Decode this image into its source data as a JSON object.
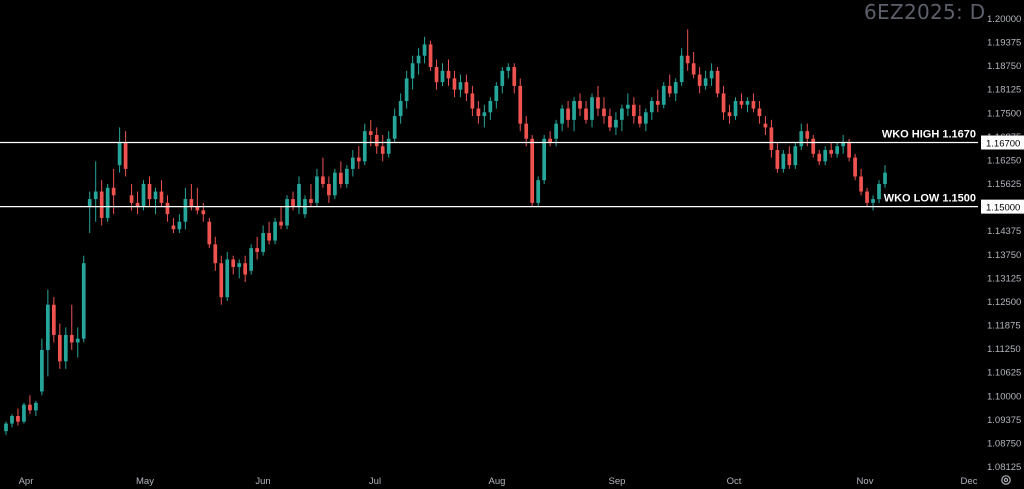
{
  "symbol": "6EZ2025: D",
  "colors": {
    "background": "#000000",
    "up": "#26a69a",
    "down": "#ef5350",
    "text": "#d1d4dc",
    "level_line": "#ffffff",
    "axis_text": "#b2b5be",
    "title": "#5d606b"
  },
  "chart_data": {
    "type": "candlestick",
    "title": "6EZ2025: D",
    "ylim": [
      1.07875,
      1.20125
    ],
    "x_tick_labels": [
      "Apr",
      "May",
      "Jun",
      "Jul",
      "Aug",
      "Sep",
      "Oct",
      "Nov",
      "Dec"
    ],
    "y_tick_labels": [
      "1.20000",
      "1.19375",
      "1.18750",
      "1.18125",
      "1.17500",
      "1.16875",
      "1.16250",
      "1.15625",
      "1.15000",
      "1.14375",
      "1.13750",
      "1.13125",
      "1.12500",
      "1.11875",
      "1.11250",
      "1.10625",
      "1.10000",
      "1.09375",
      "1.08750",
      "1.08125"
    ],
    "levels": [
      {
        "label": "WKO HIGH 1.1670",
        "value": 1.167,
        "axis_label": "1.16700"
      },
      {
        "label": "WKO LOW 1.1500",
        "value": 1.15,
        "axis_label": "1.15000"
      }
    ],
    "candles": [
      [
        1.0905,
        1.093,
        1.0895,
        1.0925
      ],
      [
        1.0925,
        1.095,
        1.0915,
        1.0945
      ],
      [
        1.0945,
        1.0965,
        1.092,
        1.093
      ],
      [
        1.093,
        1.098,
        1.0925,
        1.0975
      ],
      [
        1.0975,
        1.1,
        1.095,
        1.096
      ],
      [
        1.096,
        1.0985,
        1.0945,
        1.098
      ],
      [
        1.101,
        1.115,
        1.1,
        1.112
      ],
      [
        1.112,
        1.128,
        1.105,
        1.124
      ],
      [
        1.124,
        1.126,
        1.114,
        1.116
      ],
      [
        1.116,
        1.119,
        1.107,
        1.109
      ],
      [
        1.109,
        1.118,
        1.107,
        1.116
      ],
      [
        1.116,
        1.124,
        1.112,
        1.114
      ],
      [
        1.114,
        1.118,
        1.11,
        1.115
      ],
      [
        1.115,
        1.137,
        1.114,
        1.135
      ],
      [
        1.15,
        1.154,
        1.143,
        1.152
      ],
      [
        1.152,
        1.162,
        1.146,
        1.154
      ],
      [
        1.154,
        1.157,
        1.145,
        1.147
      ],
      [
        1.147,
        1.156,
        1.146,
        1.155
      ],
      [
        1.155,
        1.16,
        1.148,
        1.153
      ],
      [
        1.161,
        1.171,
        1.159,
        1.167
      ],
      [
        1.167,
        1.17,
        1.158,
        1.16
      ],
      [
        1.153,
        1.156,
        1.149,
        1.151
      ],
      [
        1.151,
        1.154,
        1.148,
        1.15
      ],
      [
        1.15,
        1.157,
        1.149,
        1.156
      ],
      [
        1.156,
        1.158,
        1.15,
        1.152
      ],
      [
        1.152,
        1.155,
        1.148,
        1.154
      ],
      [
        1.154,
        1.157,
        1.15,
        1.151
      ],
      [
        1.151,
        1.153,
        1.146,
        1.148
      ],
      [
        1.145,
        1.147,
        1.143,
        1.144
      ],
      [
        1.144,
        1.148,
        1.143,
        1.146
      ],
      [
        1.146,
        1.155,
        1.144,
        1.152
      ],
      [
        1.152,
        1.156,
        1.149,
        1.15
      ],
      [
        1.15,
        1.155,
        1.148,
        1.149
      ],
      [
        1.149,
        1.151,
        1.146,
        1.148
      ],
      [
        1.146,
        1.147,
        1.139,
        1.14
      ],
      [
        1.14,
        1.142,
        1.133,
        1.135
      ],
      [
        1.135,
        1.137,
        1.124,
        1.126
      ],
      [
        1.126,
        1.138,
        1.125,
        1.136
      ],
      [
        1.136,
        1.137,
        1.132,
        1.134
      ],
      [
        1.134,
        1.136,
        1.131,
        1.135
      ],
      [
        1.135,
        1.137,
        1.13,
        1.132
      ],
      [
        1.133,
        1.14,
        1.132,
        1.139
      ],
      [
        1.139,
        1.142,
        1.136,
        1.138
      ],
      [
        1.138,
        1.145,
        1.137,
        1.143
      ],
      [
        1.143,
        1.146,
        1.14,
        1.141
      ],
      [
        1.141,
        1.147,
        1.14,
        1.146
      ],
      [
        1.146,
        1.15,
        1.144,
        1.145
      ],
      [
        1.145,
        1.153,
        1.144,
        1.152
      ],
      [
        1.152,
        1.154,
        1.149,
        1.15
      ],
      [
        1.15,
        1.158,
        1.148,
        1.156
      ],
      [
        1.148,
        1.153,
        1.147,
        1.152
      ],
      [
        1.152,
        1.156,
        1.15,
        1.151
      ],
      [
        1.151,
        1.16,
        1.15,
        1.158
      ],
      [
        1.158,
        1.163,
        1.155,
        1.156
      ],
      [
        1.156,
        1.158,
        1.151,
        1.153
      ],
      [
        1.153,
        1.16,
        1.152,
        1.159
      ],
      [
        1.159,
        1.162,
        1.155,
        1.156
      ],
      [
        1.156,
        1.161,
        1.155,
        1.16
      ],
      [
        1.16,
        1.165,
        1.158,
        1.163
      ],
      [
        1.163,
        1.166,
        1.16,
        1.162
      ],
      [
        1.162,
        1.172,
        1.161,
        1.17
      ],
      [
        1.17,
        1.173,
        1.166,
        1.169
      ],
      [
        1.169,
        1.171,
        1.164,
        1.166
      ],
      [
        1.166,
        1.169,
        1.162,
        1.164
      ],
      [
        1.164,
        1.17,
        1.163,
        1.168
      ],
      [
        1.168,
        1.176,
        1.167,
        1.174
      ],
      [
        1.174,
        1.18,
        1.172,
        1.178
      ],
      [
        1.178,
        1.186,
        1.176,
        1.184
      ],
      [
        1.184,
        1.19,
        1.181,
        1.188
      ],
      [
        1.188,
        1.192,
        1.185,
        1.19
      ],
      [
        1.19,
        1.195,
        1.188,
        1.193
      ],
      [
        1.193,
        1.194,
        1.186,
        1.187
      ],
      [
        1.187,
        1.189,
        1.181,
        1.183
      ],
      [
        1.183,
        1.188,
        1.182,
        1.186
      ],
      [
        1.186,
        1.189,
        1.182,
        1.184
      ],
      [
        1.184,
        1.186,
        1.179,
        1.181
      ],
      [
        1.181,
        1.185,
        1.179,
        1.183
      ],
      [
        1.183,
        1.185,
        1.178,
        1.18
      ],
      [
        1.18,
        1.182,
        1.174,
        1.176
      ],
      [
        1.176,
        1.178,
        1.172,
        1.174
      ],
      [
        1.174,
        1.177,
        1.171,
        1.175
      ],
      [
        1.175,
        1.179,
        1.173,
        1.178
      ],
      [
        1.178,
        1.183,
        1.176,
        1.182
      ],
      [
        1.182,
        1.187,
        1.18,
        1.186
      ],
      [
        1.186,
        1.188,
        1.184,
        1.187
      ],
      [
        1.187,
        1.188,
        1.18,
        1.182
      ],
      [
        1.182,
        1.184,
        1.17,
        1.172
      ],
      [
        1.172,
        1.174,
        1.166,
        1.168
      ],
      [
        1.168,
        1.169,
        1.15,
        1.151
      ],
      [
        1.151,
        1.158,
        1.15,
        1.157
      ],
      [
        1.157,
        1.169,
        1.156,
        1.168
      ],
      [
        1.168,
        1.17,
        1.166,
        1.167
      ],
      [
        1.168,
        1.173,
        1.166,
        1.172
      ],
      [
        1.172,
        1.177,
        1.17,
        1.176
      ],
      [
        1.176,
        1.178,
        1.171,
        1.173
      ],
      [
        1.173,
        1.179,
        1.17,
        1.178
      ],
      [
        1.178,
        1.18,
        1.174,
        1.176
      ],
      [
        1.176,
        1.178,
        1.172,
        1.173
      ],
      [
        1.173,
        1.18,
        1.171,
        1.179
      ],
      [
        1.179,
        1.182,
        1.174,
        1.176
      ],
      [
        1.176,
        1.179,
        1.172,
        1.174
      ],
      [
        1.174,
        1.176,
        1.17,
        1.171
      ],
      [
        1.171,
        1.175,
        1.169,
        1.173
      ],
      [
        1.173,
        1.177,
        1.17,
        1.176
      ],
      [
        1.176,
        1.18,
        1.174,
        1.177
      ],
      [
        1.177,
        1.179,
        1.172,
        1.174
      ],
      [
        1.174,
        1.177,
        1.171,
        1.172
      ],
      [
        1.172,
        1.176,
        1.17,
        1.175
      ],
      [
        1.175,
        1.179,
        1.173,
        1.178
      ],
      [
        1.178,
        1.181,
        1.175,
        1.177
      ],
      [
        1.177,
        1.183,
        1.176,
        1.182
      ],
      [
        1.182,
        1.185,
        1.179,
        1.18
      ],
      [
        1.18,
        1.184,
        1.178,
        1.183
      ],
      [
        1.183,
        1.192,
        1.182,
        1.19
      ],
      [
        1.19,
        1.197,
        1.186,
        1.188
      ],
      [
        1.188,
        1.191,
        1.184,
        1.185
      ],
      [
        1.185,
        1.187,
        1.18,
        1.182
      ],
      [
        1.182,
        1.186,
        1.181,
        1.184
      ],
      [
        1.184,
        1.188,
        1.182,
        1.186
      ],
      [
        1.186,
        1.187,
        1.179,
        1.18
      ],
      [
        1.18,
        1.182,
        1.173,
        1.175
      ],
      [
        1.175,
        1.177,
        1.172,
        1.174
      ],
      [
        1.174,
        1.179,
        1.173,
        1.178
      ],
      [
        1.178,
        1.18,
        1.176,
        1.177
      ],
      [
        1.177,
        1.179,
        1.175,
        1.178
      ],
      [
        1.178,
        1.18,
        1.175,
        1.176
      ],
      [
        1.176,
        1.178,
        1.172,
        1.174
      ],
      [
        1.172,
        1.174,
        1.169,
        1.171
      ],
      [
        1.171,
        1.173,
        1.163,
        1.165
      ],
      [
        1.165,
        1.167,
        1.159,
        1.16
      ],
      [
        1.16,
        1.165,
        1.159,
        1.164
      ],
      [
        1.164,
        1.166,
        1.16,
        1.161
      ],
      [
        1.161,
        1.167,
        1.16,
        1.166
      ],
      [
        1.166,
        1.172,
        1.165,
        1.17
      ],
      [
        1.17,
        1.172,
        1.166,
        1.168
      ],
      [
        1.168,
        1.169,
        1.163,
        1.164
      ],
      [
        1.164,
        1.165,
        1.161,
        1.162
      ],
      [
        1.162,
        1.166,
        1.161,
        1.165
      ],
      [
        1.165,
        1.167,
        1.163,
        1.164
      ],
      [
        1.164,
        1.167,
        1.163,
        1.166
      ],
      [
        1.166,
        1.169,
        1.164,
        1.167
      ],
      [
        1.167,
        1.168,
        1.162,
        1.163
      ],
      [
        1.163,
        1.164,
        1.157,
        1.158
      ],
      [
        1.158,
        1.16,
        1.153,
        1.154
      ],
      [
        1.154,
        1.155,
        1.15,
        1.151
      ],
      [
        1.151,
        1.153,
        1.149,
        1.152
      ],
      [
        1.152,
        1.157,
        1.151,
        1.156
      ],
      [
        1.156,
        1.161,
        1.155,
        1.159
      ]
    ]
  }
}
